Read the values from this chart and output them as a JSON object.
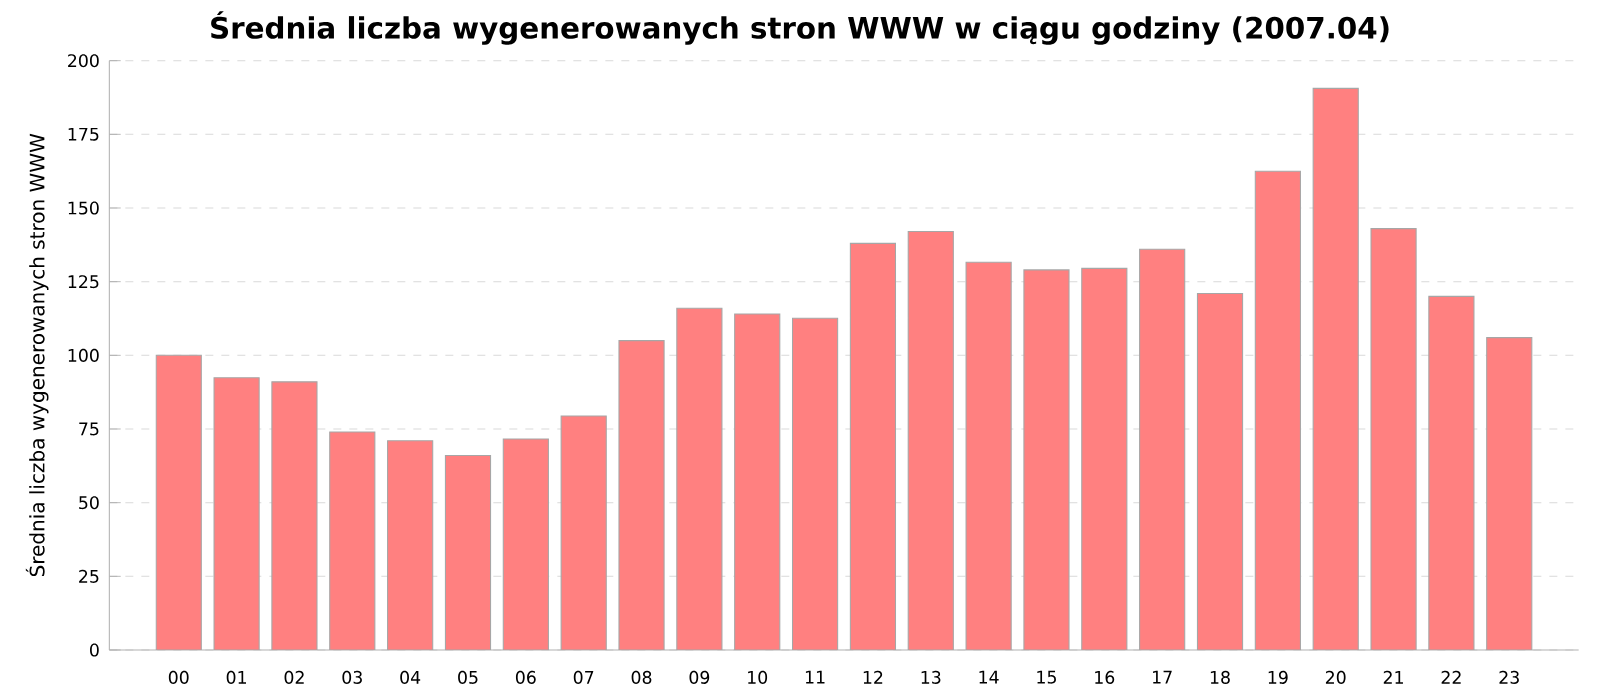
{
  "chart_data": {
    "type": "bar",
    "title": "Średnia liczba wygenerowanych stron WWW w ciągu godziny (2007.04)",
    "ylabel": "Średnia liczba wygenerowanych stron WWW",
    "categories": [
      "00",
      "01",
      "02",
      "03",
      "04",
      "05",
      "06",
      "07",
      "08",
      "09",
      "10",
      "11",
      "12",
      "13",
      "14",
      "15",
      "16",
      "17",
      "18",
      "19",
      "20",
      "21",
      "22",
      "23"
    ],
    "values": [
      100,
      92.4,
      91,
      74,
      71,
      66,
      71.6,
      79.4,
      105,
      116,
      114,
      112.6,
      138,
      142,
      131.6,
      129,
      129.5,
      136,
      121,
      162.5,
      190.6,
      143,
      120,
      106
    ],
    "color": "#ff8080",
    "ylim": [
      0,
      200
    ],
    "yticks": [
      0,
      25,
      50,
      75,
      100,
      125,
      150,
      175,
      200
    ],
    "grid": "y"
  }
}
